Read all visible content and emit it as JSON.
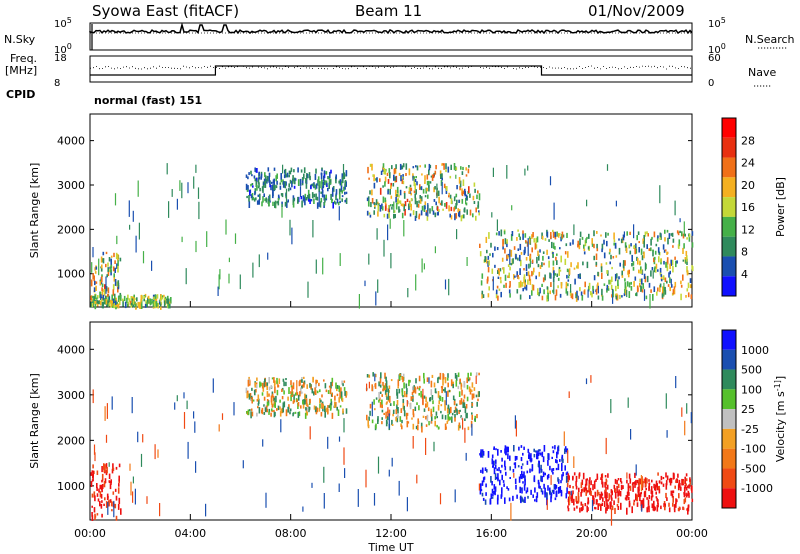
{
  "header": {
    "site": "Syowa East (fitACF)",
    "beam": "Beam 11",
    "date": "01/Nov/2009"
  },
  "sky_panel": {
    "left_label": "N.Sky",
    "right_label": "N.Search",
    "ticks_left": [
      "10^5",
      "10^0"
    ],
    "ticks_right": [
      "10^5",
      "10^0"
    ]
  },
  "freq_panel": {
    "left_label_line1": "Freq.",
    "left_label_line2": "[MHz]",
    "right_label": "Nave",
    "ticks_left": [
      "18",
      "8"
    ],
    "ticks_right": [
      "60",
      "0"
    ]
  },
  "cpid": {
    "label": "CPID",
    "value": "normal (fast) 151"
  },
  "colors": {
    "power": [
      "#1010ff",
      "#1a4fb0",
      "#2f8a5c",
      "#45b048",
      "#c4d838",
      "#f4b020",
      "#f07018",
      "#e83010",
      "#ff0000"
    ],
    "velocity": [
      "#ee1010",
      "#f04a14",
      "#f27818",
      "#f3a024",
      "#c0c0c0",
      "#56c02c",
      "#2f8a5c",
      "#1a4fb0",
      "#1010ff"
    ]
  },
  "chart_data": [
    {
      "type": "heatmap",
      "name": "power",
      "ylabel": "Slant Range [km]",
      "yticks": [
        "1000",
        "2000",
        "3000",
        "4000"
      ],
      "ylim": [
        250,
        4600
      ],
      "colorbar_label": "Power [dB]",
      "colorbar_ticks": [
        "4",
        "8",
        "12",
        "16",
        "20",
        "24",
        "28"
      ],
      "clim": [
        0,
        32
      ],
      "regions": [
        {
          "t0": 0.0,
          "t1": 1.2,
          "r0": 300,
          "r1": 1500,
          "v0": 4,
          "v1": 26
        },
        {
          "t0": 0.0,
          "t1": 3.2,
          "r0": 250,
          "r1": 550,
          "v0": 6,
          "v1": 22
        },
        {
          "t0": 6.2,
          "t1": 10.2,
          "r0": 2600,
          "r1": 3400,
          "v0": 3,
          "v1": 12
        },
        {
          "t0": 11.0,
          "t1": 15.5,
          "r0": 2300,
          "r1": 3500,
          "v0": 4,
          "v1": 26
        },
        {
          "t0": 15.5,
          "t1": 24.0,
          "r0": 500,
          "r1": 2000,
          "v0": 4,
          "v1": 24
        }
      ]
    },
    {
      "type": "heatmap",
      "name": "velocity",
      "ylabel": "Slant Range [km]",
      "yticks": [
        "1000",
        "2000",
        "3000",
        "4000"
      ],
      "ylim": [
        250,
        4600
      ],
      "xlabel": "Time UT",
      "xticks": [
        "00:00",
        "04:00",
        "08:00",
        "12:00",
        "16:00",
        "20:00",
        "00:00"
      ],
      "xlim": [
        0,
        24
      ],
      "colorbar_label": "Velocity [m s^-1]",
      "colorbar_ticks": [
        "1000",
        "500",
        "100",
        "25",
        "-25",
        "-100",
        "-500",
        "-1000"
      ],
      "regions": [
        {
          "t0": 0.0,
          "t1": 1.2,
          "r0": 300,
          "r1": 1500,
          "v0": -600,
          "v1": -100
        },
        {
          "t0": 6.2,
          "t1": 10.2,
          "r0": 2600,
          "r1": 3400,
          "v0": -25,
          "v1": 25
        },
        {
          "t0": 11.0,
          "t1": 15.5,
          "r0": 2300,
          "r1": 3500,
          "v0": -25,
          "v1": 25
        },
        {
          "t0": 15.5,
          "t1": 19.0,
          "r0": 700,
          "r1": 1900,
          "v0": 100,
          "v1": 800
        },
        {
          "t0": 19.0,
          "t1": 24.0,
          "r0": 500,
          "r1": 1300,
          "v0": -800,
          "v1": -100
        }
      ]
    }
  ]
}
